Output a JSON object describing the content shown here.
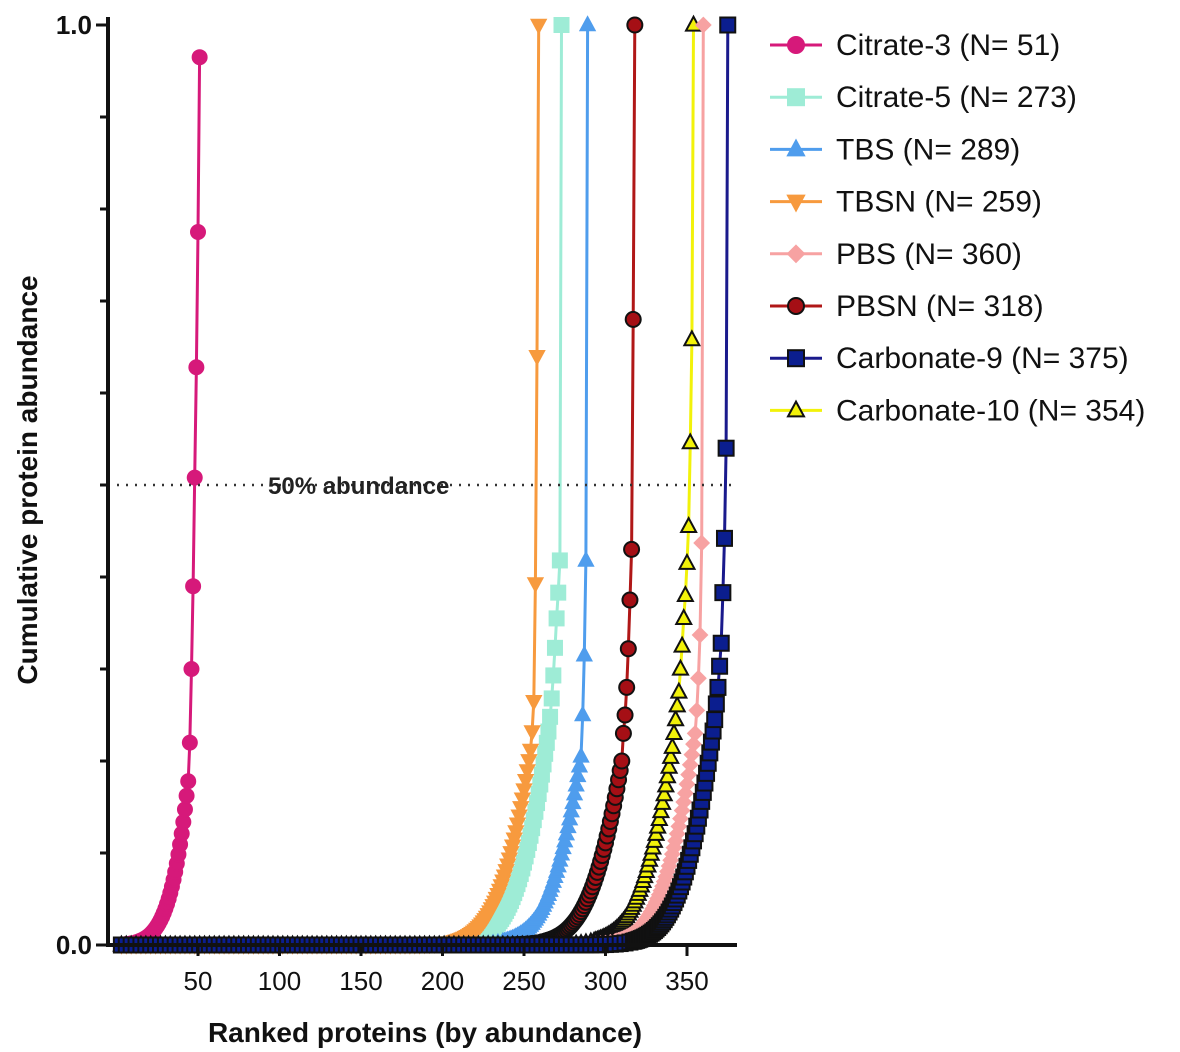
{
  "chart_data": {
    "type": "line",
    "title": "",
    "xlabel": "Ranked proteins (by abundance)",
    "ylabel": "Cumulative protein abundance",
    "xlim": [
      0,
      385
    ],
    "ylim": [
      0,
      1.0
    ],
    "x_ticks": [
      50,
      100,
      150,
      200,
      250,
      300,
      350
    ],
    "y_tick_labels": [
      "0.0",
      "1.0"
    ],
    "y_minor_ticks": 10,
    "grid": false,
    "legend_position": "right",
    "annotation": {
      "text": "50% abundance",
      "y": 0.5,
      "style": "dotted"
    },
    "series": [
      {
        "name": "Citrate-3 (N= 51)",
        "n": 51,
        "color": "#d6197a",
        "marker": "circle",
        "marker_fill": "#d6197a",
        "marker_stroke": "#d6197a",
        "top_points": [
          [
            51,
            0.965
          ],
          [
            50,
            0.775
          ],
          [
            49,
            0.628
          ],
          [
            48,
            0.508
          ],
          [
            47,
            0.39
          ],
          [
            46,
            0.3
          ],
          [
            45,
            0.22
          ],
          [
            44,
            0.178
          ]
        ]
      },
      {
        "name": "Citrate-5 (N= 273)",
        "n": 273,
        "color": "#9eecd6",
        "marker": "square",
        "marker_fill": "#9eecd6",
        "marker_stroke": "#9eecd6",
        "top_points": [
          [
            273,
            1.0
          ],
          [
            272,
            0.418
          ],
          [
            271,
            0.383
          ],
          [
            270,
            0.355
          ],
          [
            269,
            0.323
          ],
          [
            268,
            0.293
          ],
          [
            267,
            0.268
          ],
          [
            266,
            0.248
          ],
          [
            265,
            0.232
          ]
        ]
      },
      {
        "name": "TBS (N= 289)",
        "n": 289,
        "color": "#4f9ded",
        "marker": "triangle-up",
        "marker_fill": "#4f9ded",
        "marker_stroke": "#4f9ded",
        "top_points": [
          [
            289,
            1.0
          ],
          [
            288,
            0.418
          ],
          [
            287,
            0.315
          ],
          [
            286,
            0.25
          ],
          [
            285,
            0.205
          ]
        ]
      },
      {
        "name": "TBSN (N= 259)",
        "n": 259,
        "color": "#f79a3e",
        "marker": "triangle-down",
        "marker_fill": "#f79a3e",
        "marker_stroke": "#f79a3e",
        "top_points": [
          [
            259,
            1.0
          ],
          [
            258,
            0.64
          ],
          [
            257,
            0.393
          ],
          [
            256,
            0.265
          ],
          [
            255,
            0.232
          ],
          [
            254,
            0.212
          ]
        ]
      },
      {
        "name": "PBS (N= 360)",
        "n": 360,
        "color": "#f7a2a2",
        "marker": "diamond",
        "marker_fill": "#f7a2a2",
        "marker_stroke": "#f7a2a2",
        "top_points": [
          [
            360,
            1.0
          ],
          [
            359,
            0.437
          ],
          [
            358,
            0.337
          ],
          [
            357,
            0.29
          ],
          [
            356,
            0.255
          ],
          [
            355,
            0.23
          ]
        ]
      },
      {
        "name": "PBSN (N= 318)",
        "n": 318,
        "color": "#b01717",
        "marker": "circle",
        "marker_fill": "#a50f15",
        "marker_stroke": "#111111",
        "top_points": [
          [
            318,
            1.0
          ],
          [
            317,
            0.68
          ],
          [
            316,
            0.43
          ],
          [
            315,
            0.375
          ],
          [
            314,
            0.322
          ],
          [
            313,
            0.28
          ],
          [
            312,
            0.25
          ],
          [
            311,
            0.23
          ],
          [
            310,
            0.2
          ]
        ]
      },
      {
        "name": "Carbonate-9 (N= 375)",
        "n": 375,
        "color": "#1a1a8c",
        "marker": "square",
        "marker_fill": "#0b1e8f",
        "marker_stroke": "#111111",
        "top_points": [
          [
            375,
            1.0
          ],
          [
            374,
            0.54
          ],
          [
            373,
            0.442
          ],
          [
            372,
            0.383
          ],
          [
            371,
            0.328
          ],
          [
            370,
            0.303
          ],
          [
            369,
            0.28
          ],
          [
            368,
            0.262
          ],
          [
            367,
            0.245
          ]
        ]
      },
      {
        "name": "Carbonate-10 (N= 354)",
        "n": 354,
        "color": "#f2f20a",
        "marker": "triangle-up",
        "marker_fill": "#f2f20a",
        "marker_stroke": "#111111",
        "top_points": [
          [
            354,
            1.0
          ],
          [
            353,
            0.658
          ],
          [
            352,
            0.546
          ],
          [
            351,
            0.455
          ],
          [
            350,
            0.415
          ],
          [
            349,
            0.38
          ],
          [
            348,
            0.355
          ],
          [
            347,
            0.325
          ],
          [
            346,
            0.3
          ],
          [
            345,
            0.275
          ],
          [
            344,
            0.26
          ],
          [
            343,
            0.245
          ],
          [
            342,
            0.23
          ],
          [
            341,
            0.215
          ]
        ]
      }
    ]
  }
}
